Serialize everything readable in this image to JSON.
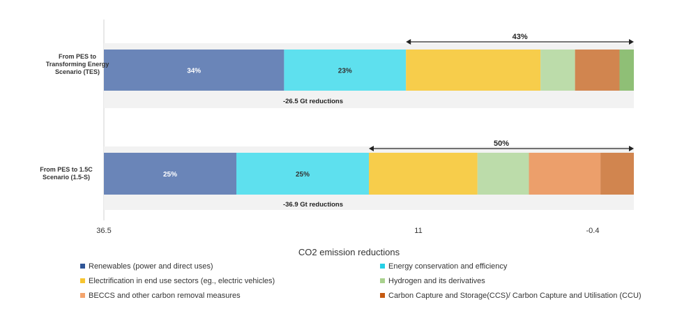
{
  "chart_data": {
    "type": "bar",
    "orientation": "horizontal-stacked",
    "xlabel": "CO2 emission reductions",
    "x_ticks": [
      "36.5",
      "11",
      "-0.4"
    ],
    "categories": [
      "From PES to Transforming Energy Scenario (TES)",
      "From PES to 1.5C Scenario (1.5-S)"
    ],
    "series": [
      {
        "name": "Renewables (power and direct uses)",
        "color": "#6a85b8",
        "values": [
          34,
          25
        ]
      },
      {
        "name": "Energy conservation and efficiency",
        "color": "#5ee0ee",
        "values": [
          23,
          25
        ]
      },
      {
        "name": "Electrification in end use sectors (eg., electric vehicles)",
        "color": "#f7cd4b",
        "values": [
          25.4,
          20.5
        ]
      },
      {
        "name": "Hydrogen and its derivatives",
        "color": "#bcdcaa",
        "values": [
          6.5,
          9.7
        ]
      },
      {
        "name": "BECCS and other carbon removal measures",
        "color": "#ec9f6b",
        "values": [
          0,
          13.5
        ]
      },
      {
        "name": "Carbon Capture and Storage(CCS)/ Carbon Capture and Utilisation (CCU)",
        "color": "#d1854f",
        "values": [
          8.4,
          6.3
        ]
      },
      {
        "name": "",
        "color": "#8fbf76",
        "values": [
          2.7,
          0
        ]
      }
    ],
    "segment_labels": [
      [
        "34%",
        "23%"
      ],
      [
        "25%",
        "25%"
      ]
    ],
    "bracket_labels": [
      "43%",
      "50%"
    ],
    "reduction_labels": [
      "-26.5 Gt reductions",
      "-36.9 Gt reductions"
    ],
    "legend_position": "bottom"
  }
}
